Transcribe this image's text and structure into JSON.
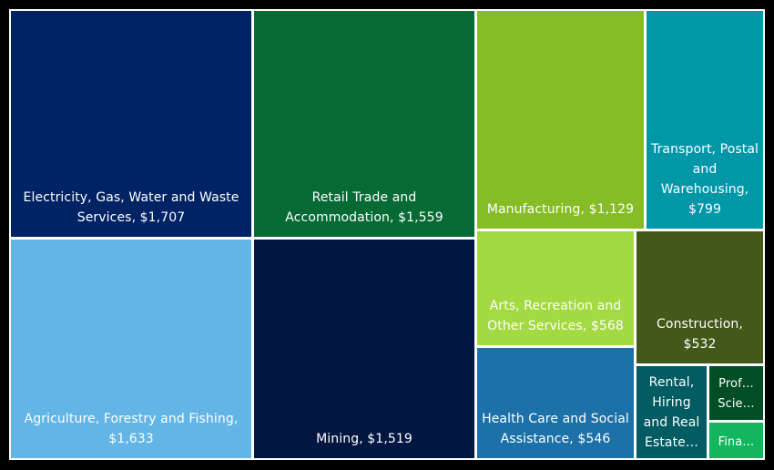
{
  "chart_data": {
    "type": "treemap",
    "title": "",
    "currency_symbol": "$",
    "nodes": [
      {
        "name": "Electricity, Gas, Water and Waste Services",
        "label": "Electricity, Gas, Water and Waste Services, $1,707",
        "value": 1707,
        "color": "#002366"
      },
      {
        "name": "Retail Trade and Accommodation",
        "label": "Retail Trade and Accommodation, $1,559",
        "value": 1559,
        "color": "#066a35"
      },
      {
        "name": "Manufacturing",
        "label": "Manufacturing, $1,129",
        "value": 1129,
        "color": "#86bc25"
      },
      {
        "name": "Transport, Postal and Warehousing",
        "label": "Transport, Postal and Warehousing, $799",
        "value": 799,
        "color": "#0097a9"
      },
      {
        "name": "Agriculture, Forestry and Fishing",
        "label": "Agriculture, Forestry and Fishing, $1,633",
        "value": 1633,
        "color": "#62b5e5"
      },
      {
        "name": "Mining",
        "label": "Mining, $1,519",
        "value": 1519,
        "color": "#011641"
      },
      {
        "name": "Arts, Recreation and Other Services",
        "label": "Arts, Recreation and Other Services, $568",
        "value": 568,
        "color": "#a3d941"
      },
      {
        "name": "Construction",
        "label": "Construction, $532",
        "value": 532,
        "color": "#43591a"
      },
      {
        "name": "Health Care and Social Assistance",
        "label": "Health Care and Social Assistance, $546",
        "value": 546,
        "color": "#1c72a8"
      },
      {
        "name": "Rental, Hiring and Real Estate",
        "label": "Rental, Hiring and Real Estate…",
        "value": 250,
        "color": "#005b63"
      },
      {
        "name": "Professional, Scientific",
        "label": "Prof… Scie…",
        "value": 140,
        "color": "#004d26"
      },
      {
        "name": "Financial",
        "label": "Fina…",
        "value": 100,
        "color": "#13b55e"
      }
    ]
  }
}
